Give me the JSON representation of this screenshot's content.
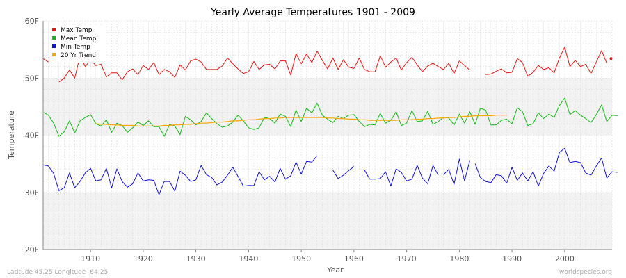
{
  "colors": {
    "max": "#ee1111",
    "mean": "#11bb11",
    "min": "#1111dd",
    "trend": "#ffa500",
    "band": "#f2f2f2",
    "background": "#ffffff",
    "grid": "#dddddd"
  },
  "chart_data": {
    "type": "line",
    "title": "Yearly Average Temperatures 1901 - 2009",
    "xlabel": "Year",
    "ylabel": "Temperature",
    "xlim": [
      1901,
      2009
    ],
    "ylim": [
      20,
      60
    ],
    "grid": true,
    "legend_position": "top-left",
    "x_ticks": [
      {
        "value": 1910,
        "label": "1910"
      },
      {
        "value": 1920,
        "label": "1920"
      },
      {
        "value": 1930,
        "label": "1930"
      },
      {
        "value": 1940,
        "label": "1940"
      },
      {
        "value": 1950,
        "label": "1950"
      },
      {
        "value": 1960,
        "label": "1960"
      },
      {
        "value": 1970,
        "label": "1970"
      },
      {
        "value": 1980,
        "label": "1980"
      },
      {
        "value": 1990,
        "label": "1990"
      },
      {
        "value": 2000,
        "label": "2000"
      }
    ],
    "y_ticks": [
      {
        "value": 20,
        "label": "20F"
      },
      {
        "value": 30,
        "label": "30F"
      },
      {
        "value": 40,
        "label": "40F"
      },
      {
        "value": 50,
        "label": "50F"
      },
      {
        "value": 60,
        "label": "60F"
      }
    ],
    "series": [
      {
        "name": "Max Temp",
        "color_key": "max",
        "start_year": 1901,
        "values": [
          53.4,
          52.8,
          null,
          49.3,
          50.0,
          51.4,
          50.0,
          53.8,
          52.0,
          53.2,
          52.2,
          52.4,
          50.2,
          50.9,
          50.9,
          49.7,
          51.1,
          51.6,
          50.6,
          52.2,
          51.5,
          52.7,
          50.6,
          51.5,
          51.1,
          50.1,
          52.3,
          51.4,
          53.0,
          53.3,
          52.8,
          51.5,
          51.5,
          51.5,
          52.1,
          53.5,
          52.5,
          51.6,
          50.8,
          51.1,
          52.9,
          51.5,
          52.3,
          52.4,
          51.6,
          53.0,
          53.0,
          50.5,
          54.3,
          52.5,
          54.2,
          52.7,
          54.7,
          53.1,
          51.6,
          53.5,
          51.5,
          53.2,
          51.9,
          51.7,
          53.5,
          51.5,
          51.1,
          51.1,
          53.9,
          51.9,
          52.8,
          53.5,
          51.4,
          52.7,
          53.6,
          52.3,
          51.1,
          52.1,
          52.6,
          52.0,
          51.5,
          52.6,
          50.8,
          53.0,
          52.2,
          51.4,
          null,
          null,
          50.6,
          50.7,
          51.2,
          51.6,
          50.9,
          51.0,
          53.4,
          52.7,
          50.3,
          51.0,
          52.2,
          51.5,
          51.8,
          50.9,
          53.5,
          55.4,
          52.0,
          53.1,
          52.0,
          52.4,
          50.8,
          52.8,
          54.8,
          52.6,
          null
        ],
        "extra_points": [
          {
            "x": 2008.8,
            "y": 53.4
          }
        ]
      },
      {
        "name": "Mean Temp",
        "color_key": "mean",
        "start_year": 1901,
        "values": [
          44.0,
          43.5,
          42.1,
          39.8,
          40.6,
          42.5,
          40.4,
          42.5,
          43.1,
          43.6,
          42.0,
          41.6,
          42.7,
          40.5,
          42.1,
          41.7,
          40.5,
          41.3,
          42.3,
          41.7,
          42.5,
          41.5,
          41.5,
          39.8,
          41.9,
          41.6,
          40.1,
          43.3,
          42.7,
          41.8,
          42.4,
          43.9,
          42.9,
          42.0,
          41.4,
          41.6,
          42.3,
          43.5,
          42.5,
          41.3,
          41.0,
          41.3,
          43.1,
          42.9,
          42.1,
          43.7,
          43.3,
          41.5,
          44.4,
          42.4,
          44.7,
          43.9,
          45.6,
          43.5,
          42.8,
          42.2,
          43.3,
          42.9,
          43.5,
          43.6,
          42.4,
          41.5,
          41.9,
          41.8,
          43.8,
          42.1,
          42.6,
          44.1,
          41.7,
          42.1,
          44.3,
          42.4,
          42.5,
          44.2,
          41.9,
          42.4,
          43.1,
          43.0,
          41.8,
          43.7,
          42.1,
          44.1,
          41.9,
          44.7,
          44.4,
          41.8,
          41.8,
          42.6,
          42.8,
          42.0,
          44.8,
          44.1,
          41.7,
          42.0,
          43.9,
          42.9,
          43.7,
          43.1,
          45.2,
          46.5,
          43.6,
          44.3,
          43.5,
          42.9,
          42.2,
          43.6,
          45.3,
          42.4,
          43.5,
          43.4
        ]
      },
      {
        "name": "Min Temp",
        "color_key": "min",
        "start_year": 1901,
        "values": [
          34.8,
          34.6,
          33.3,
          30.3,
          30.8,
          33.4,
          30.8,
          31.9,
          33.4,
          34.2,
          32.0,
          32.2,
          34.2,
          30.8,
          34.1,
          31.9,
          30.9,
          31.5,
          33.4,
          32.0,
          32.2,
          32.1,
          29.6,
          31.9,
          31.9,
          30.2,
          33.7,
          33.0,
          31.9,
          32.2,
          34.7,
          33.1,
          32.6,
          31.3,
          31.8,
          33.0,
          34.4,
          32.8,
          31.1,
          31.2,
          31.2,
          33.6,
          32.2,
          32.8,
          31.8,
          34.2,
          32.3,
          32.9,
          35.3,
          33.2,
          35.4,
          35.3,
          36.4,
          null,
          null,
          null,
          34.0,
          32.4,
          33.0,
          33.8,
          34.5,
          null,
          33.9,
          32.3,
          32.3,
          32.4,
          33.6,
          31.1,
          34.1,
          33.5,
          32.0,
          32.3,
          34.7,
          32.5,
          31.5,
          34.7,
          33.0,
          null,
          null,
          null,
          33.1,
          34.0,
          31.4,
          35.8,
          32.0,
          35.6,
          null,
          null,
          null,
          null,
          null,
          null,
          null,
          null,
          null,
          null,
          null,
          null,
          null,
          null,
          null,
          null,
          null,
          null,
          null,
          null,
          null,
          null,
          null,
          null
        ],
        "segments": [
          {
            "start_year": 1901,
            "values": [
              34.8,
              34.6,
              33.3,
              30.3,
              30.8,
              33.4,
              30.8,
              31.9,
              33.4,
              34.2,
              32.0,
              32.2,
              34.2,
              30.8,
              34.1,
              31.9,
              30.9,
              31.5,
              33.4,
              32.0,
              32.2,
              32.1,
              29.6,
              31.9,
              31.9,
              30.2,
              33.7,
              33.0,
              31.9,
              32.2,
              34.7,
              33.1,
              32.6,
              31.3,
              31.8,
              33.0,
              34.4,
              32.8,
              31.1,
              31.2,
              31.2,
              33.6,
              32.2,
              32.8,
              31.8,
              34.2,
              32.3,
              32.9,
              35.3,
              33.2,
              35.4,
              35.3,
              36.4
            ]
          },
          {
            "start_year": 1956,
            "values": [
              33.9,
              32.4,
              33.0,
              33.8,
              34.5
            ]
          },
          {
            "start_year": 1962,
            "values": [
              33.9,
              32.3,
              32.3,
              32.4,
              33.6,
              31.1,
              34.1,
              33.5,
              32.0,
              32.3,
              34.7,
              32.5,
              31.5,
              34.7,
              33.0,
              null
            ]
          },
          {
            "start_year": 1977,
            "values": [
              33.1,
              34.0,
              31.4,
              35.8,
              32.0,
              35.6,
              null
            ]
          },
          {
            "start_year": 1983,
            "values": [
              35.0,
              32.6,
              31.9,
              31.7,
              33.1,
              32.9,
              31.6,
              34.4,
              32.1,
              33.4,
              32.0,
              33.6,
              31.1,
              33.3,
              34.6,
              33.7,
              37.0,
              37.7,
              35.2,
              35.4,
              35.2,
              33.4,
              33.0,
              34.6,
              36.0,
              32.5,
              33.6,
              33.5
            ]
          }
        ]
      },
      {
        "name": "20 Yr Trend",
        "color_key": "trend",
        "start_year": 1911,
        "values": [
          42.0,
          41.9,
          41.9,
          41.8,
          41.8,
          41.7,
          41.7,
          41.7,
          41.6,
          41.6,
          41.6,
          41.6,
          41.6,
          41.7,
          41.7,
          41.8,
          41.8,
          41.9,
          41.9,
          42.0,
          42.1,
          42.1,
          42.2,
          42.3,
          42.3,
          42.4,
          42.5,
          42.5,
          42.6,
          42.7,
          42.7,
          42.8,
          42.9,
          42.9,
          43.0,
          43.0,
          43.1,
          43.1,
          43.1,
          43.1,
          43.1,
          43.1,
          43.1,
          43.1,
          43.0,
          43.0,
          42.9,
          42.9,
          42.8,
          42.8,
          42.7,
          42.7,
          42.6,
          42.6,
          42.6,
          42.6,
          42.6,
          42.6,
          42.7,
          42.7,
          42.7,
          42.8,
          42.8,
          42.9,
          42.9,
          43.0,
          43.0,
          43.1,
          43.1,
          43.2,
          43.3,
          43.3,
          43.4,
          43.4,
          43.4,
          43.4,
          43.5,
          43.5,
          43.5
        ]
      }
    ]
  },
  "footer": {
    "left": "Latitude 45.25 Longitude -64.25",
    "right": "worldspecies.org"
  }
}
